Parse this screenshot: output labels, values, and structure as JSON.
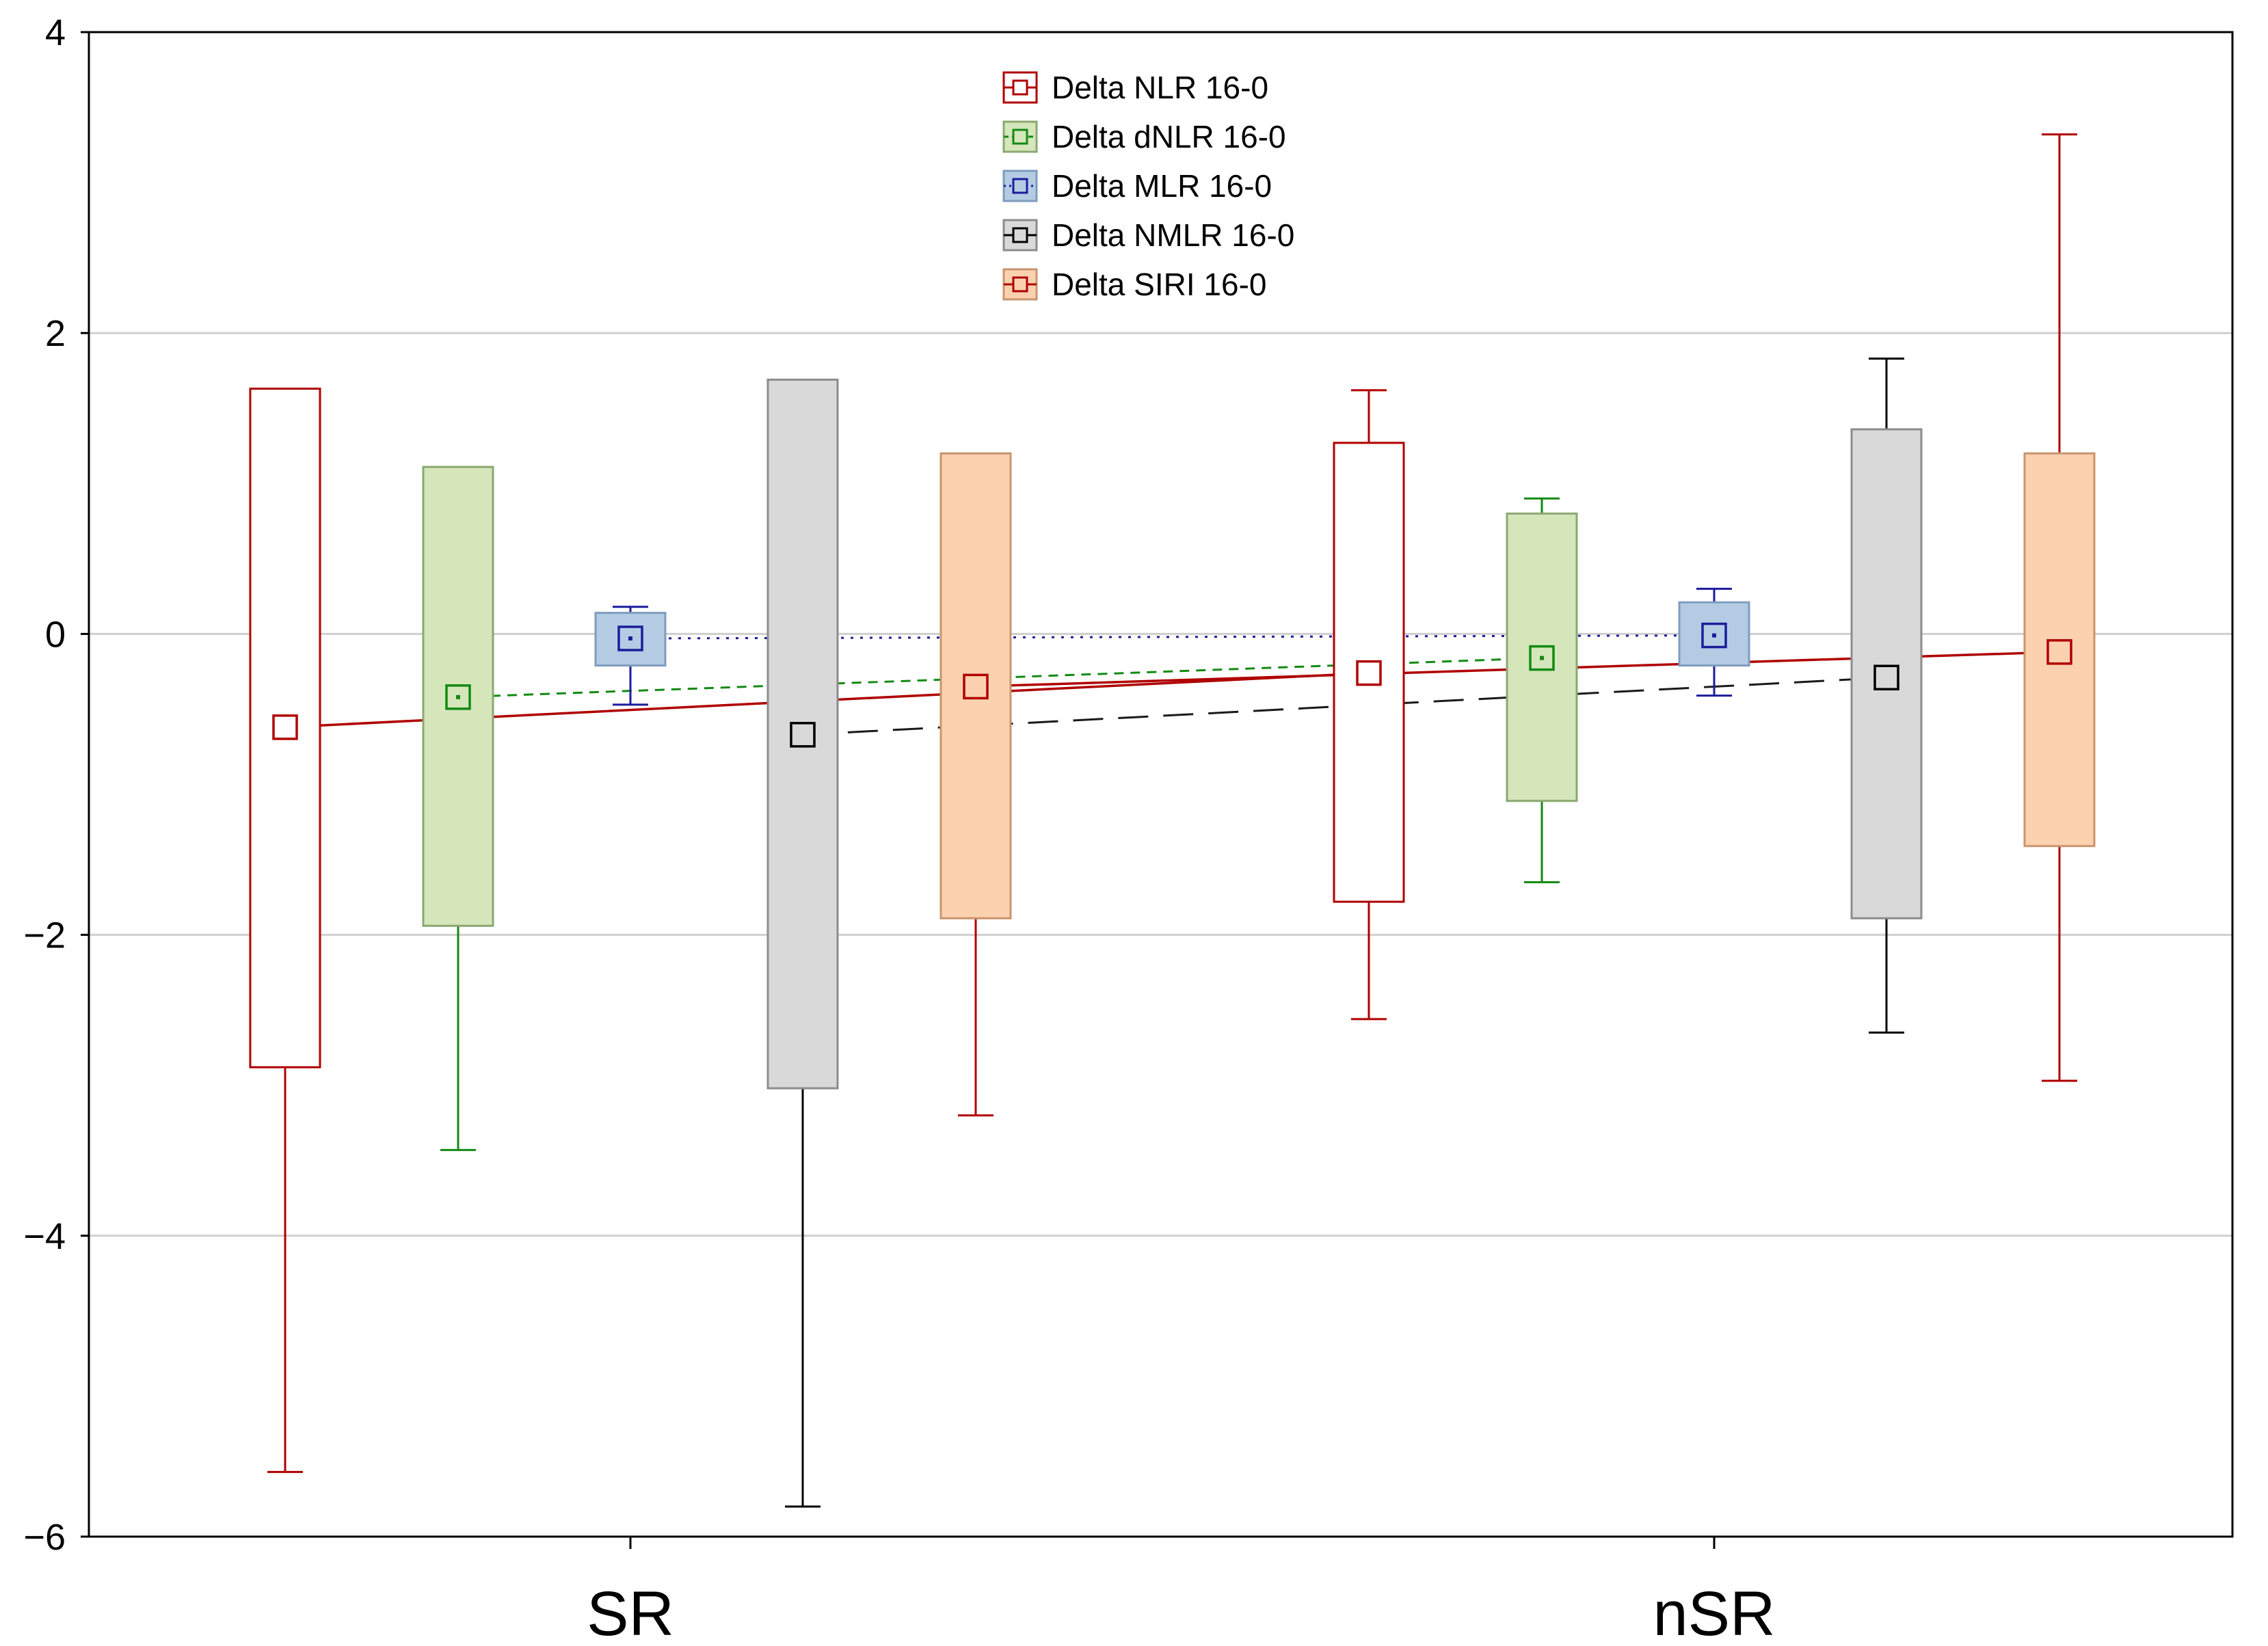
{
  "chart_data": {
    "type": "box",
    "title": "",
    "xlabel": "",
    "ylabel": "",
    "ylim": [
      -6,
      4
    ],
    "yticks": [
      -6,
      -4,
      -2,
      0,
      2,
      4
    ],
    "ytick_labels": [
      "−6",
      "−4",
      "−2",
      "0",
      "2",
      "4"
    ],
    "grid": true,
    "legend_position": "top-center",
    "categories": [
      "SR",
      "nSR"
    ],
    "series": [
      {
        "name": "Delta NLR 16-0",
        "stroke": "#b00000",
        "fill": "#ffffff",
        "line_style": "solid",
        "boxes": [
          {
            "median": -0.62,
            "q1": -2.88,
            "q3": 1.63,
            "min": -5.57,
            "max": 1.63
          },
          {
            "median": -0.26,
            "q1": -1.78,
            "q3": 1.27,
            "min": -2.56,
            "max": 1.62
          }
        ]
      },
      {
        "name": "Delta dNLR 16-0",
        "stroke": "#128a12",
        "fill": "#d5e6bb",
        "line_style": "dashed",
        "boxes": [
          {
            "median": -0.42,
            "q1": -1.94,
            "q3": 1.11,
            "min": -3.43,
            "max": 1.11
          },
          {
            "median": -0.16,
            "q1": -1.11,
            "q3": 0.8,
            "min": -1.65,
            "max": 0.9
          }
        ]
      },
      {
        "name": "Delta MLR 16-0",
        "stroke": "#1c1c9c",
        "fill": "#b3cce4",
        "line_style": "dotted",
        "boxes": [
          {
            "median": -0.03,
            "q1": -0.21,
            "q3": 0.14,
            "min": -0.47,
            "max": 0.18
          },
          {
            "median": -0.01,
            "q1": -0.21,
            "q3": 0.21,
            "min": -0.41,
            "max": 0.3
          }
        ]
      },
      {
        "name": "Delta NMLR 16-0",
        "stroke": "#000000",
        "fill": "#d9d9d9",
        "line_style": "longdash",
        "boxes": [
          {
            "median": -0.67,
            "q1": -3.02,
            "q3": 1.69,
            "min": -5.8,
            "max": 1.69
          },
          {
            "median": -0.29,
            "q1": -1.89,
            "q3": 1.36,
            "min": -2.65,
            "max": 1.83
          }
        ]
      },
      {
        "name": "Delta SIRI 16-0",
        "stroke": "#b00000",
        "fill": "#fcd1b0",
        "line_style": "solid",
        "boxes": [
          {
            "median": -0.35,
            "q1": -1.89,
            "q3": 1.2,
            "min": -3.2,
            "max": 1.2
          },
          {
            "median": -0.12,
            "q1": -1.41,
            "q3": 1.2,
            "min": -2.97,
            "max": 3.32
          }
        ]
      }
    ]
  }
}
